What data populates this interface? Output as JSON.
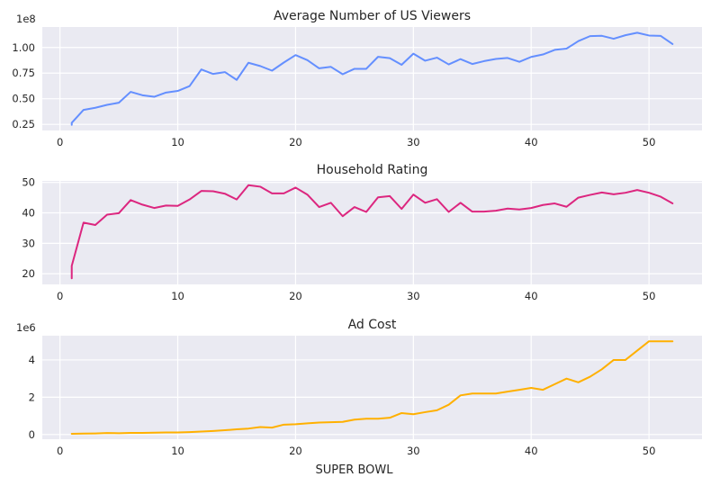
{
  "chart_data": [
    {
      "type": "line",
      "title": "Average Number of US Viewers",
      "offset_label": "1e8",
      "xlim": [
        -1.5,
        54.5
      ],
      "ylim": [
        0.19,
        1.2
      ],
      "xticks": [
        0,
        10,
        20,
        30,
        40,
        50
      ],
      "xtick_labels": [
        "0",
        "10",
        "20",
        "30",
        "40",
        "50"
      ],
      "yticks": [
        0.25,
        0.5,
        0.75,
        1.0
      ],
      "ytick_labels": [
        "0.25",
        "0.50",
        "0.75",
        "1.00"
      ],
      "color": "#648fff",
      "series": [
        {
          "x": [
            1,
            1,
            2,
            3,
            4,
            5,
            6,
            7,
            8,
            9,
            10,
            11,
            12,
            13,
            14,
            15,
            16,
            17,
            18,
            19,
            20,
            21,
            22,
            23,
            24,
            25,
            26,
            27,
            28,
            29,
            30,
            31,
            32,
            33,
            34,
            35,
            36,
            37,
            38,
            39,
            40,
            41,
            42,
            43,
            44,
            45,
            46,
            47,
            48,
            49,
            50,
            51,
            52
          ],
          "y": [
            0.245,
            0.265,
            0.391,
            0.412,
            0.44,
            0.461,
            0.567,
            0.534,
            0.519,
            0.56,
            0.576,
            0.623,
            0.786,
            0.742,
            0.76,
            0.684,
            0.851,
            0.819,
            0.774,
            0.853,
            0.926,
            0.877,
            0.797,
            0.811,
            0.739,
            0.792,
            0.792,
            0.909,
            0.896,
            0.831,
            0.94,
            0.871,
            0.901,
            0.835,
            0.887,
            0.839,
            0.867,
            0.888,
            0.898,
            0.86,
            0.908,
            0.932,
            0.977,
            0.989,
            1.062,
            1.111,
            1.114,
            1.085,
            1.12,
            1.144,
            1.117,
            1.113,
            1.034
          ]
        }
      ]
    },
    {
      "type": "line",
      "title": "Household Rating",
      "offset_label": "",
      "xlim": [
        -1.5,
        54.5
      ],
      "ylim": [
        16.5,
        50.5
      ],
      "xticks": [
        0,
        10,
        20,
        30,
        40,
        50
      ],
      "xtick_labels": [
        "0",
        "10",
        "20",
        "30",
        "40",
        "50"
      ],
      "yticks": [
        20,
        30,
        40,
        50
      ],
      "ytick_labels": [
        "20",
        "30",
        "40",
        "50"
      ],
      "color": "#dc267f",
      "series": [
        {
          "x": [
            1,
            1,
            2,
            3,
            4,
            5,
            6,
            7,
            8,
            9,
            10,
            11,
            12,
            13,
            14,
            15,
            16,
            17,
            18,
            19,
            20,
            21,
            22,
            23,
            24,
            25,
            26,
            27,
            28,
            29,
            30,
            31,
            32,
            33,
            34,
            35,
            36,
            37,
            38,
            39,
            40,
            41,
            42,
            43,
            44,
            45,
            46,
            47,
            48,
            49,
            50,
            51,
            52
          ],
          "y": [
            18.5,
            22.6,
            36.8,
            36.0,
            39.4,
            39.9,
            44.2,
            42.7,
            41.6,
            42.4,
            42.3,
            44.4,
            47.2,
            47.1,
            46.3,
            44.4,
            49.1,
            48.6,
            46.4,
            46.4,
            48.3,
            46.0,
            41.9,
            43.3,
            38.9,
            41.9,
            40.3,
            45.1,
            45.5,
            41.3,
            46.0,
            43.3,
            44.5,
            40.3,
            43.3,
            40.4,
            40.4,
            40.7,
            41.4,
            41.1,
            41.6,
            42.6,
            43.1,
            42.0,
            45.0,
            45.9,
            46.7,
            46.1,
            46.6,
            47.5,
            46.6,
            45.3,
            43.1
          ]
        }
      ]
    },
    {
      "type": "line",
      "title": "Ad Cost",
      "offset_label": "1e6",
      "xlabel": "SUPER BOWL",
      "xlim": [
        -1.5,
        54.5
      ],
      "ylim": [
        -0.25,
        5.3
      ],
      "xticks": [
        0,
        10,
        20,
        30,
        40,
        50
      ],
      "xtick_labels": [
        "0",
        "10",
        "20",
        "30",
        "40",
        "50"
      ],
      "yticks": [
        0,
        2,
        4
      ],
      "ytick_labels": [
        "0",
        "2",
        "4"
      ],
      "color": "#ffb000",
      "series": [
        {
          "x": [
            1,
            2,
            3,
            4,
            5,
            6,
            7,
            8,
            9,
            10,
            11,
            12,
            13,
            14,
            15,
            16,
            17,
            18,
            19,
            20,
            21,
            22,
            23,
            24,
            25,
            26,
            27,
            28,
            29,
            30,
            31,
            32,
            33,
            34,
            35,
            36,
            37,
            38,
            39,
            40,
            41,
            42,
            43,
            44,
            45,
            46,
            47,
            48,
            49,
            50,
            51,
            52
          ],
          "y": [
            0.04,
            0.05,
            0.06,
            0.08,
            0.07,
            0.09,
            0.09,
            0.1,
            0.11,
            0.11,
            0.13,
            0.16,
            0.19,
            0.23,
            0.28,
            0.32,
            0.4,
            0.37,
            0.53,
            0.55,
            0.6,
            0.64,
            0.66,
            0.68,
            0.8,
            0.85,
            0.85,
            0.9,
            1.15,
            1.09,
            1.2,
            1.3,
            1.6,
            2.1,
            2.2,
            2.2,
            2.2,
            2.3,
            2.4,
            2.5,
            2.4,
            2.7,
            3.0,
            2.8,
            3.1,
            3.5,
            4.0,
            4.0,
            4.5,
            5.0,
            5.0,
            5.0
          ]
        }
      ]
    }
  ]
}
